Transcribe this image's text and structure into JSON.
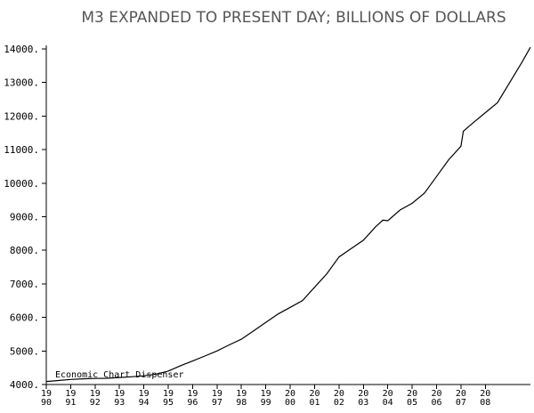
{
  "chart_data": {
    "type": "line",
    "title": "M3 EXPANDED TO PRESENT DAY; BILLIONS OF DOLLARS",
    "xlabel": "",
    "ylabel": "",
    "credit": "Economic Chart Dispenser",
    "ylim": [
      4000,
      14000
    ],
    "xlim": [
      1990,
      2009.85
    ],
    "grid": false,
    "y_ticks": [
      4000,
      5000,
      6000,
      7000,
      8000,
      9000,
      10000,
      11000,
      12000,
      13000,
      14000
    ],
    "y_tick_labels": [
      "4000.",
      "5000.",
      "6000.",
      "7000.",
      "8000.",
      "9000.",
      "10000.",
      "11000.",
      "12000.",
      "13000.",
      "14000."
    ],
    "x_ticks": [
      {
        "value": 1990,
        "top": "19",
        "bottom": "90"
      },
      {
        "value": 1991,
        "top": "19",
        "bottom": "91"
      },
      {
        "value": 1992,
        "top": "19",
        "bottom": "92"
      },
      {
        "value": 1993,
        "top": "19",
        "bottom": "93"
      },
      {
        "value": 1994,
        "top": "19",
        "bottom": "94"
      },
      {
        "value": 1995,
        "top": "19",
        "bottom": "95"
      },
      {
        "value": 1996,
        "top": "19",
        "bottom": "96"
      },
      {
        "value": 1997,
        "top": "19",
        "bottom": "97"
      },
      {
        "value": 1998,
        "top": "19",
        "bottom": "98"
      },
      {
        "value": 1999,
        "top": "19",
        "bottom": "99"
      },
      {
        "value": 2000,
        "top": "20",
        "bottom": "00"
      },
      {
        "value": 2001,
        "top": "20",
        "bottom": "01"
      },
      {
        "value": 2002,
        "top": "20",
        "bottom": "02"
      },
      {
        "value": 2003,
        "top": "20",
        "bottom": "03"
      },
      {
        "value": 2004,
        "top": "20",
        "bottom": "04"
      },
      {
        "value": 2005,
        "top": "20",
        "bottom": "05"
      },
      {
        "value": 2006,
        "top": "20",
        "bottom": "06"
      },
      {
        "value": 2007,
        "top": "20",
        "bottom": "07"
      },
      {
        "value": 2008,
        "top": "20",
        "bottom": "08"
      }
    ],
    "series": [
      {
        "color": "#000000",
        "x": [
          1990.0,
          1990.5,
          1991.0,
          1991.5,
          1992.0,
          1992.5,
          1993.0,
          1993.5,
          1994.0,
          1994.5,
          1995.0,
          1995.5,
          1996.0,
          1996.5,
          1997.0,
          1997.5,
          1998.0,
          1998.5,
          1999.0,
          1999.5,
          2000.0,
          2000.5,
          2001.0,
          2001.5,
          2002.0,
          2002.5,
          2003.0,
          2003.5,
          2003.8,
          2004.0,
          2004.5,
          2005.0,
          2005.5,
          2006.0,
          2006.5,
          2007.0,
          2007.1,
          2007.5,
          2008.0,
          2008.5,
          2009.0,
          2009.5,
          2009.85
        ],
        "y": [
          4090,
          4120,
          4150,
          4170,
          4180,
          4185,
          4210,
          4230,
          4260,
          4310,
          4400,
          4560,
          4700,
          4850,
          5000,
          5180,
          5350,
          5600,
          5850,
          6100,
          6300,
          6500,
          6900,
          7300,
          7800,
          8050,
          8300,
          8700,
          8900,
          8880,
          9200,
          9400,
          9700,
          10200,
          10700,
          11100,
          11550,
          11800,
          12100,
          12400,
          13000,
          13600,
          14050
        ]
      }
    ]
  }
}
